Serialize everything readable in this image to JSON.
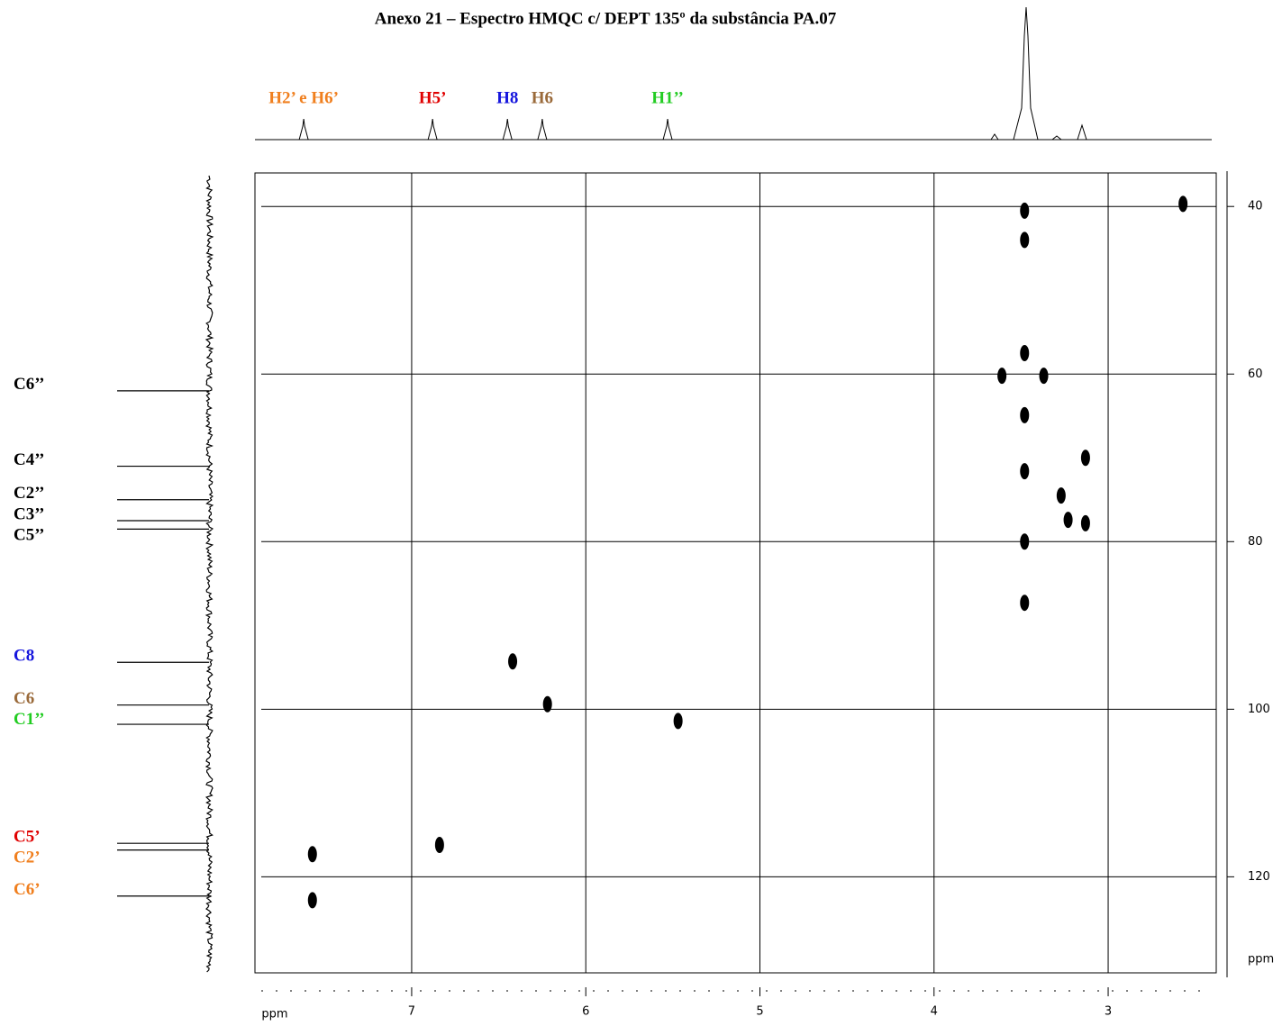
{
  "chart_data": {
    "type": "scatter",
    "title": "Anexo 21 – Espectro HMQC c/ DEPT 135º da substância PA.07",
    "x": [
      7.57,
      7.57,
      6.84,
      6.42,
      6.22,
      5.47,
      2.57,
      3.48,
      3.48,
      3.48,
      3.61,
      3.37,
      3.48,
      3.48,
      3.27,
      3.23,
      3.13,
      3.13,
      3.48,
      3.48
    ],
    "y": [
      117.3,
      122.8,
      116.2,
      94.3,
      99.4,
      101.4,
      39.7,
      40.5,
      44.0,
      57.5,
      60.2,
      60.2,
      64.9,
      71.6,
      74.5,
      77.4,
      70.0,
      77.8,
      80.0,
      87.3
    ],
    "xlim": [
      7.9,
      2.4
    ],
    "ylim": [
      36,
      132
    ],
    "xticks": [
      7,
      6,
      5,
      4,
      3
    ],
    "yticks": [
      40,
      60,
      80,
      100,
      120
    ],
    "xlabel": "ppm",
    "ylabel": "ppm",
    "grid": true,
    "color": "#000000",
    "proton_peaks": [
      {
        "label": "H2’ e H6’",
        "color": "#f07f1e",
        "ppm": 7.62
      },
      {
        "label": "H5’",
        "color": "#e00000",
        "ppm": 6.88
      },
      {
        "label": "H8",
        "color": "#1515dd",
        "ppm": 6.45
      },
      {
        "label": "H6",
        "color": "#9a6a3a",
        "ppm": 6.25
      },
      {
        "label": "H1’’",
        "color": "#22cc22",
        "ppm": 5.53
      }
    ],
    "carbon_peaks": [
      {
        "label": "C6’’",
        "color": "#000000",
        "ppm": 62.0
      },
      {
        "label": "C4’’",
        "color": "#000000",
        "ppm": 71.0
      },
      {
        "label": "C2’’",
        "color": "#000000",
        "ppm": 75.0
      },
      {
        "label": "C3’’",
        "color": "#000000",
        "ppm": 77.5
      },
      {
        "label": "C5’’",
        "color": "#000000",
        "ppm": 78.5
      },
      {
        "label": "C8",
        "color": "#1515dd",
        "ppm": 94.4
      },
      {
        "label": "C6",
        "color": "#9a6a3a",
        "ppm": 99.5
      },
      {
        "label": "C1’’",
        "color": "#22cc22",
        "ppm": 101.8
      },
      {
        "label": "C5’",
        "color": "#e00000",
        "ppm": 116.0
      },
      {
        "label": "C2’",
        "color": "#f07f1e",
        "ppm": 116.8
      },
      {
        "label": "C6’",
        "color": "#f07f1e",
        "ppm": 122.3
      }
    ]
  }
}
